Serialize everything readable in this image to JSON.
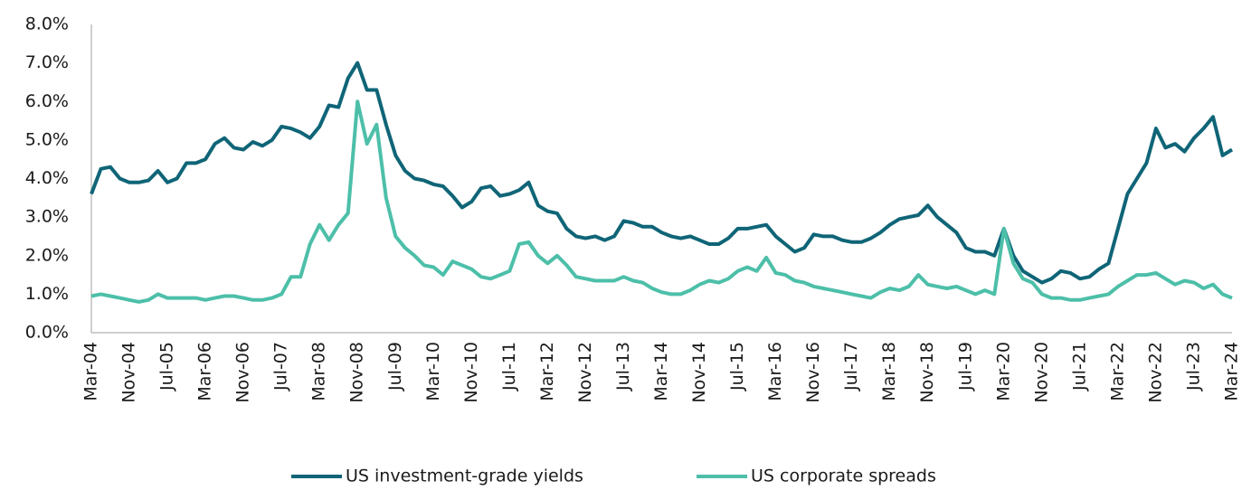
{
  "chart_data": {
    "type": "line",
    "categories": [
      "Mar-04",
      null,
      null,
      null,
      "Nov-04",
      null,
      null,
      null,
      "Jul-05",
      null,
      null,
      null,
      "Mar-06",
      null,
      null,
      null,
      "Nov-06",
      null,
      null,
      null,
      "Jul-07",
      null,
      null,
      null,
      "Mar-08",
      null,
      null,
      null,
      "Nov-08",
      null,
      null,
      null,
      "Jul-09",
      null,
      null,
      null,
      "Mar-10",
      null,
      null,
      null,
      "Nov-10",
      null,
      null,
      null,
      "Jul-11",
      null,
      null,
      null,
      "Mar-12",
      null,
      null,
      null,
      "Nov-12",
      null,
      null,
      null,
      "Jul-13",
      null,
      null,
      null,
      "Mar-14",
      null,
      null,
      null,
      "Nov-14",
      null,
      null,
      null,
      "Jul-15",
      null,
      null,
      null,
      "Mar-16",
      null,
      null,
      null,
      "Nov-16",
      null,
      null,
      null,
      "Jul-17",
      null,
      null,
      null,
      "Mar-18",
      null,
      null,
      null,
      "Nov-18",
      null,
      null,
      null,
      "Jul-19",
      null,
      null,
      null,
      "Mar-20",
      null,
      null,
      null,
      "Nov-20",
      null,
      null,
      null,
      "Jul-21",
      null,
      null,
      null,
      "Mar-22",
      null,
      null,
      null,
      "Nov-22",
      null,
      null,
      null,
      "Jul-23",
      null,
      null,
      null,
      "Mar-24"
    ],
    "series": [
      {
        "name": "US investment-grade yields",
        "color": "#0f6577",
        "values": [
          3.6,
          4.25,
          4.3,
          4.0,
          3.9,
          3.9,
          3.95,
          4.2,
          3.9,
          4.0,
          4.4,
          4.4,
          4.5,
          4.9,
          5.05,
          4.8,
          4.75,
          4.95,
          4.85,
          5.0,
          5.35,
          5.3,
          5.2,
          5.05,
          5.35,
          5.9,
          5.85,
          6.6,
          7.0,
          6.3,
          6.3,
          5.4,
          4.6,
          4.2,
          4.0,
          3.95,
          3.85,
          3.8,
          3.55,
          3.25,
          3.4,
          3.75,
          3.8,
          3.55,
          3.6,
          3.7,
          3.9,
          3.3,
          3.15,
          3.1,
          2.7,
          2.5,
          2.45,
          2.5,
          2.4,
          2.5,
          2.9,
          2.85,
          2.75,
          2.75,
          2.6,
          2.5,
          2.45,
          2.5,
          2.4,
          2.3,
          2.3,
          2.45,
          2.7,
          2.7,
          2.75,
          2.8,
          2.5,
          2.3,
          2.1,
          2.2,
          2.55,
          2.5,
          2.5,
          2.4,
          2.35,
          2.35,
          2.45,
          2.6,
          2.8,
          2.95,
          3.0,
          3.05,
          3.3,
          3.0,
          2.8,
          2.6,
          2.2,
          2.1,
          2.1,
          2.0,
          2.7,
          2.0,
          1.6,
          1.45,
          1.3,
          1.4,
          1.6,
          1.55,
          1.4,
          1.45,
          1.65,
          1.8,
          2.7,
          3.6,
          4.0,
          4.4,
          5.3,
          4.8,
          4.9,
          4.7,
          5.05,
          5.3,
          5.6,
          4.6,
          4.75
        ]
      },
      {
        "name": "US corporate spreads",
        "color": "#4dbfa9",
        "values": [
          0.95,
          1.0,
          0.95,
          0.9,
          0.85,
          0.8,
          0.85,
          1.0,
          0.9,
          0.9,
          0.9,
          0.9,
          0.85,
          0.9,
          0.95,
          0.95,
          0.9,
          0.85,
          0.85,
          0.9,
          1.0,
          1.45,
          1.45,
          2.3,
          2.8,
          2.4,
          2.8,
          3.1,
          6.0,
          4.9,
          5.4,
          3.5,
          2.5,
          2.2,
          2.0,
          1.75,
          1.7,
          1.5,
          1.85,
          1.75,
          1.65,
          1.45,
          1.4,
          1.5,
          1.6,
          2.3,
          2.35,
          2.0,
          1.8,
          2.0,
          1.75,
          1.45,
          1.4,
          1.35,
          1.35,
          1.35,
          1.45,
          1.35,
          1.3,
          1.15,
          1.05,
          1.0,
          1.0,
          1.1,
          1.25,
          1.35,
          1.3,
          1.4,
          1.6,
          1.7,
          1.6,
          1.95,
          1.55,
          1.5,
          1.35,
          1.3,
          1.2,
          1.15,
          1.1,
          1.05,
          1.0,
          0.95,
          0.9,
          1.05,
          1.15,
          1.1,
          1.2,
          1.5,
          1.25,
          1.2,
          1.15,
          1.2,
          1.1,
          1.0,
          1.1,
          1.0,
          2.7,
          1.8,
          1.4,
          1.3,
          1.0,
          0.9,
          0.9,
          0.85,
          0.85,
          0.9,
          0.95,
          1.0,
          1.2,
          1.35,
          1.5,
          1.5,
          1.55,
          1.4,
          1.25,
          1.35,
          1.3,
          1.15,
          1.25,
          1.0,
          0.9
        ]
      }
    ],
    "ylim": [
      0,
      8
    ],
    "yticks": [
      {
        "value": 0,
        "label": "0.0%"
      },
      {
        "value": 1,
        "label": "1.0%"
      },
      {
        "value": 2,
        "label": "2.0%"
      },
      {
        "value": 3,
        "label": "3.0%"
      },
      {
        "value": 4,
        "label": "4.0%"
      },
      {
        "value": 5,
        "label": "5.0%"
      },
      {
        "value": 6,
        "label": "6.0%"
      },
      {
        "value": 7,
        "label": "7.0%"
      },
      {
        "value": 8,
        "label": "8.0%"
      }
    ],
    "grid": false,
    "legend": "bottom"
  }
}
